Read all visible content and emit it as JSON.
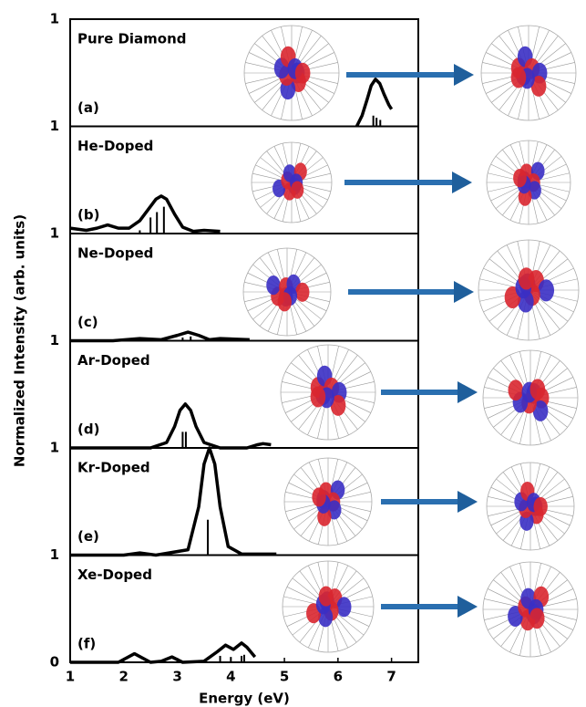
{
  "chart_data": [
    {
      "type": "line",
      "title": "Pure Diamond",
      "annotation": "(a)",
      "ylabel": "Normalized Intensity (arb. units)",
      "xlim": [
        1,
        7.5
      ],
      "ylim": [
        0,
        1
      ],
      "yticks": [
        1
      ],
      "x": [
        6.35,
        6.45,
        6.55,
        6.62,
        6.7,
        6.78,
        6.86,
        6.95,
        7.0
      ],
      "values": [
        0.0,
        0.1,
        0.26,
        0.38,
        0.44,
        0.4,
        0.3,
        0.2,
        0.16
      ],
      "stick_x": [
        6.66,
        6.72,
        6.79
      ],
      "stick_values": [
        0.1,
        0.08,
        0.06
      ]
    },
    {
      "type": "line",
      "title": "He-Doped",
      "annotation": "(b)",
      "xlim": [
        1,
        7.5
      ],
      "ylim": [
        0,
        1
      ],
      "yticks": [
        1
      ],
      "x": [
        1.0,
        1.3,
        1.5,
        1.7,
        1.9,
        2.1,
        2.3,
        2.45,
        2.6,
        2.7,
        2.8,
        2.95,
        3.1,
        3.3,
        3.5,
        3.8
      ],
      "values": [
        0.05,
        0.03,
        0.05,
        0.08,
        0.05,
        0.05,
        0.12,
        0.22,
        0.32,
        0.35,
        0.32,
        0.18,
        0.06,
        0.02,
        0.03,
        0.02
      ],
      "stick_x": [
        2.3,
        2.5,
        2.62,
        2.75
      ],
      "stick_values": [
        0.03,
        0.15,
        0.2,
        0.25
      ]
    },
    {
      "type": "line",
      "title": "Ne-Doped",
      "annotation": "(c)",
      "xlim": [
        1,
        7.5
      ],
      "ylim": [
        0,
        1
      ],
      "yticks": [
        1
      ],
      "x": [
        1.0,
        1.8,
        2.3,
        2.7,
        3.0,
        3.2,
        3.4,
        3.6,
        3.8,
        4.35
      ],
      "values": [
        0.0,
        0.0,
        0.02,
        0.01,
        0.05,
        0.08,
        0.05,
        0.01,
        0.02,
        0.01
      ],
      "stick_x": [
        3.1,
        3.25
      ],
      "stick_values": [
        0.03,
        0.04
      ]
    },
    {
      "type": "line",
      "title": "Ar-Doped",
      "annotation": "(d)",
      "xlim": [
        1,
        7.5
      ],
      "ylim": [
        0,
        1
      ],
      "yticks": [
        1
      ],
      "x": [
        1.0,
        2.5,
        2.8,
        2.95,
        3.05,
        3.15,
        3.25,
        3.35,
        3.5,
        3.8,
        4.3,
        4.5,
        4.6,
        4.75
      ],
      "values": [
        0.0,
        0.0,
        0.05,
        0.2,
        0.35,
        0.41,
        0.35,
        0.2,
        0.05,
        0.0,
        0.0,
        0.03,
        0.04,
        0.03
      ],
      "stick_x": [
        3.1,
        3.16
      ],
      "stick_values": [
        0.15,
        0.15
      ]
    },
    {
      "type": "line",
      "title": "Kr-Doped",
      "annotation": "(e)",
      "xlim": [
        1,
        7.5
      ],
      "ylim": [
        0,
        1
      ],
      "yticks": [
        1
      ],
      "x": [
        1.0,
        2.0,
        2.3,
        2.6,
        3.2,
        3.4,
        3.5,
        3.6,
        3.7,
        3.8,
        3.95,
        4.2,
        4.85
      ],
      "values": [
        0.0,
        0.0,
        0.02,
        0.0,
        0.05,
        0.45,
        0.85,
        1.0,
        0.85,
        0.45,
        0.08,
        0.01,
        0.01
      ],
      "stick_x": [
        3.57
      ],
      "stick_values": [
        0.33
      ]
    },
    {
      "type": "line",
      "title": "Xe-Doped",
      "annotation": "(f)",
      "xlim": [
        1,
        7.5
      ],
      "ylim": [
        0,
        1
      ],
      "yticks": [
        0,
        1
      ],
      "xlabel": "Energy (eV)",
      "xticks": [
        1,
        2,
        3,
        4,
        5,
        6,
        7
      ],
      "x": [
        1.0,
        1.9,
        2.2,
        2.5,
        2.7,
        2.9,
        3.1,
        3.5,
        3.75,
        3.9,
        4.05,
        4.2,
        4.3,
        4.45
      ],
      "values": [
        0.0,
        0.0,
        0.08,
        0.0,
        0.01,
        0.05,
        0.0,
        0.01,
        0.1,
        0.16,
        0.12,
        0.18,
        0.14,
        0.05
      ],
      "stick_x": [
        3.8,
        4.0,
        4.2,
        4.25
      ],
      "stick_values": [
        0.06,
        0.05,
        0.06,
        0.07
      ]
    }
  ]
}
